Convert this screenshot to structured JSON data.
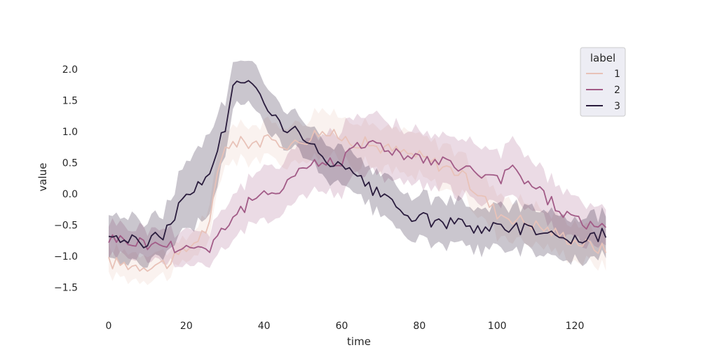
{
  "chart_data": {
    "type": "line",
    "title": "",
    "xlabel": "time",
    "ylabel": "value",
    "xlim": [
      -2,
      130
    ],
    "ylim": [
      -1.85,
      2.3
    ],
    "x_ticks": [
      0,
      20,
      40,
      60,
      80,
      100,
      120
    ],
    "y_ticks": [
      -1.5,
      -1.0,
      -0.5,
      0.0,
      0.5,
      1.0,
      1.5,
      2.0
    ],
    "y_tick_labels": [
      "−1.5",
      "−1.0",
      "−0.5",
      "0.0",
      "0.5",
      "1.0",
      "1.5",
      "2.0"
    ],
    "grid": false,
    "legend": {
      "title": "label",
      "position": "top-right"
    },
    "series": [
      {
        "name": "1",
        "color": "#e8c2b8",
        "band_opacity": 0.22,
        "points": [
          [
            0,
            -1.1
          ],
          [
            8,
            -1.15
          ],
          [
            16,
            -1.1
          ],
          [
            20,
            -0.9
          ],
          [
            26,
            -0.5
          ],
          [
            28,
            0.3
          ],
          [
            30,
            0.8
          ],
          [
            40,
            0.85
          ],
          [
            48,
            0.8
          ],
          [
            54,
            1.0
          ],
          [
            60,
            0.9
          ],
          [
            70,
            0.75
          ],
          [
            80,
            0.6
          ],
          [
            90,
            0.35
          ],
          [
            100,
            -0.3
          ],
          [
            110,
            -0.5
          ],
          [
            120,
            -0.75
          ],
          [
            128,
            -0.9
          ]
        ],
        "band": [
          0.22,
          0.22,
          0.2,
          0.2,
          0.25,
          0.3,
          0.3,
          0.28,
          0.3,
          0.35,
          0.35,
          0.35,
          0.35,
          0.35,
          0.35,
          0.3,
          0.3,
          0.3
        ]
      },
      {
        "name": "2",
        "color": "#a25b87",
        "band_opacity": 0.22,
        "points": [
          [
            0,
            -0.7
          ],
          [
            10,
            -0.8
          ],
          [
            20,
            -0.85
          ],
          [
            26,
            -0.85
          ],
          [
            30,
            -0.5
          ],
          [
            36,
            -0.15
          ],
          [
            40,
            -0.05
          ],
          [
            46,
            0.2
          ],
          [
            50,
            0.45
          ],
          [
            56,
            0.5
          ],
          [
            60,
            0.55
          ],
          [
            64,
            0.85
          ],
          [
            70,
            0.75
          ],
          [
            76,
            0.65
          ],
          [
            80,
            0.55
          ],
          [
            90,
            0.45
          ],
          [
            96,
            0.3
          ],
          [
            100,
            0.2
          ],
          [
            104,
            0.4
          ],
          [
            110,
            0.1
          ],
          [
            116,
            -0.25
          ],
          [
            120,
            -0.4
          ],
          [
            128,
            -0.6
          ]
        ],
        "band": [
          0.25,
          0.25,
          0.28,
          0.28,
          0.35,
          0.4,
          0.45,
          0.45,
          0.45,
          0.5,
          0.5,
          0.5,
          0.5,
          0.45,
          0.45,
          0.45,
          0.45,
          0.45,
          0.45,
          0.4,
          0.4,
          0.35,
          0.3
        ]
      },
      {
        "name": "3",
        "color": "#2a1c3d",
        "band_opacity": 0.25,
        "points": [
          [
            0,
            -0.65
          ],
          [
            8,
            -0.8
          ],
          [
            14,
            -0.65
          ],
          [
            18,
            -0.2
          ],
          [
            22,
            0.05
          ],
          [
            26,
            0.35
          ],
          [
            30,
            1.1
          ],
          [
            32,
            1.75
          ],
          [
            36,
            1.75
          ],
          [
            40,
            1.55
          ],
          [
            44,
            1.1
          ],
          [
            48,
            1.0
          ],
          [
            52,
            0.75
          ],
          [
            56,
            0.55
          ],
          [
            60,
            0.4
          ],
          [
            66,
            0.15
          ],
          [
            70,
            -0.05
          ],
          [
            76,
            -0.3
          ],
          [
            80,
            -0.4
          ],
          [
            90,
            -0.5
          ],
          [
            100,
            -0.55
          ],
          [
            110,
            -0.55
          ],
          [
            120,
            -0.75
          ],
          [
            128,
            -0.65
          ]
        ],
        "band": [
          0.35,
          0.35,
          0.35,
          0.5,
          0.6,
          0.65,
          0.45,
          0.35,
          0.35,
          0.35,
          0.3,
          0.3,
          0.3,
          0.3,
          0.3,
          0.3,
          0.35,
          0.35,
          0.35,
          0.35,
          0.35,
          0.35,
          0.35,
          0.35
        ]
      }
    ]
  }
}
